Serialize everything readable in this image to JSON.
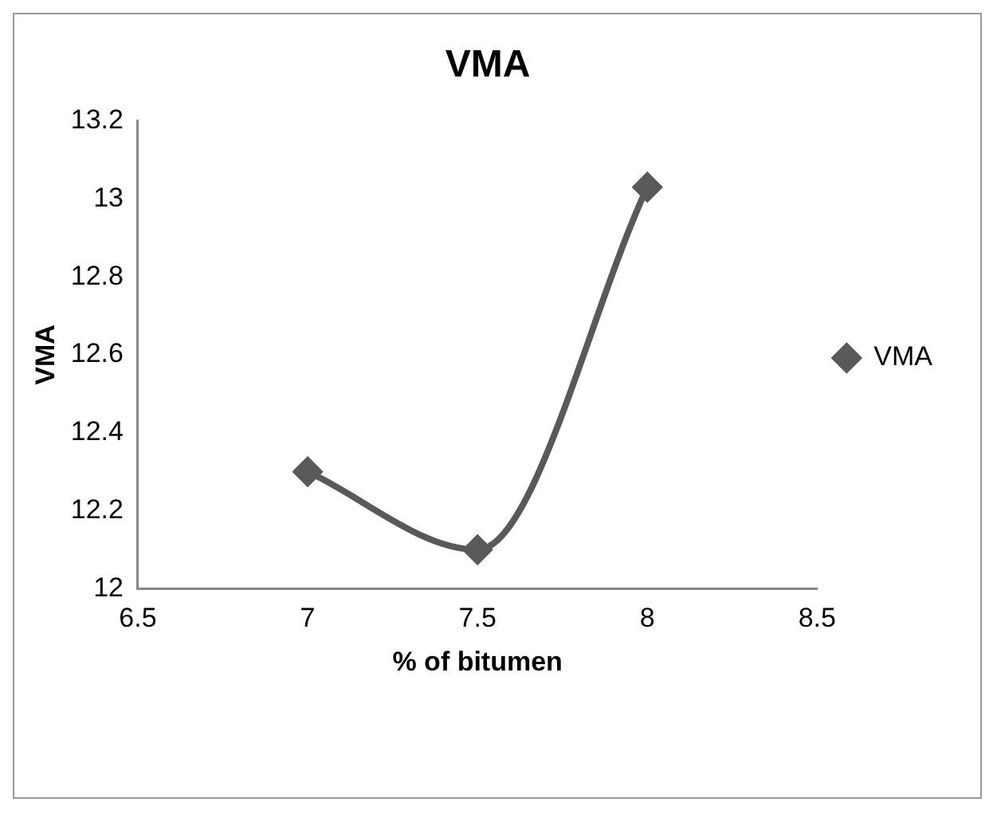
{
  "chart_data": {
    "type": "line",
    "title": "VMA",
    "xlabel": "% of bitumen",
    "ylabel": "VMA",
    "x": [
      7,
      7.5,
      8
    ],
    "series": [
      {
        "name": "VMA",
        "color": "#595959",
        "values": [
          12.3,
          12.1,
          13.03
        ]
      }
    ],
    "xlim": [
      6.5,
      8.5
    ],
    "xticks": [
      6.5,
      7,
      7.5,
      8,
      8.5
    ],
    "ylim": [
      12,
      13.2
    ],
    "yticks": [
      12,
      12.2,
      12.4,
      12.6,
      12.8,
      13,
      13.2
    ],
    "grid": false,
    "legend": "right",
    "marker": "diamond",
    "line_style": "solid"
  }
}
